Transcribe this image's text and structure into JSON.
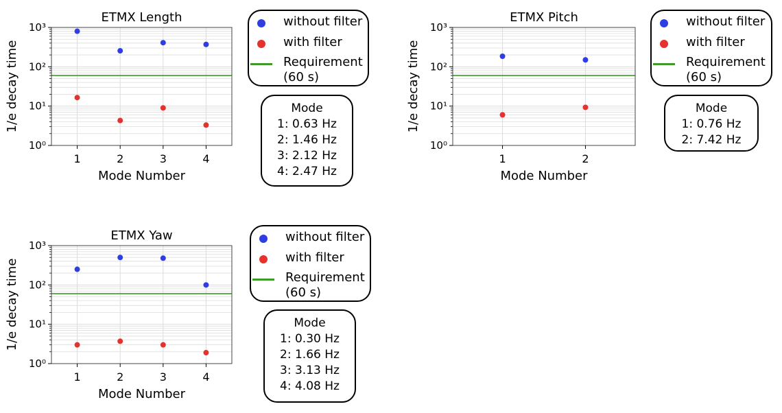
{
  "colors": {
    "without_filter": "#2f3ee3",
    "with_filter": "#e5322d",
    "requirement": "#3f9a2a",
    "grid": "#dcdcdc"
  },
  "chart_data": [
    {
      "type": "scatter",
      "title": "ETMX Length",
      "xlabel": "Mode Number",
      "ylabel": "1/e decay time",
      "yscale": "log",
      "ylim": [
        1,
        1000
      ],
      "xticks": [
        "1",
        "2",
        "3",
        "4"
      ],
      "yticks": [
        "10⁰",
        "10¹",
        "10²",
        "10³"
      ],
      "grid": true,
      "requirement": 60,
      "series": [
        {
          "name": "without filter",
          "x": [
            1,
            2,
            3,
            4
          ],
          "values": [
            800,
            255,
            410,
            370
          ]
        },
        {
          "name": "with filter",
          "x": [
            1,
            2,
            3,
            4
          ],
          "values": [
            16.5,
            4.3,
            9.0,
            3.3
          ]
        }
      ],
      "legend": {
        "items": [
          "without filter",
          "with filter",
          "Requirement",
          "(60 s)"
        ],
        "placement": "right"
      },
      "mode_box": {
        "title": "Mode",
        "lines": [
          "1: 0.63 Hz",
          "2: 1.46 Hz",
          "3: 2.12 Hz",
          "4: 2.47 Hz"
        ]
      }
    },
    {
      "type": "scatter",
      "title": "ETMX Pitch",
      "xlabel": "Mode Number",
      "ylabel": "1/e decay time",
      "yscale": "log",
      "ylim": [
        1,
        1000
      ],
      "xticks": [
        "1",
        "2"
      ],
      "yticks": [
        "10⁰",
        "10¹",
        "10²",
        "10³"
      ],
      "grid": true,
      "requirement": 60,
      "series": [
        {
          "name": "without filter",
          "x": [
            1,
            2
          ],
          "values": [
            185,
            150
          ]
        },
        {
          "name": "with filter",
          "x": [
            1,
            2
          ],
          "values": [
            6.0,
            9.3
          ]
        }
      ],
      "legend": {
        "items": [
          "without filter",
          "with filter",
          "Requirement",
          "(60 s)"
        ],
        "placement": "right"
      },
      "mode_box": {
        "title": "Mode",
        "lines": [
          "1: 0.76 Hz",
          "2: 7.42 Hz"
        ]
      }
    },
    {
      "type": "scatter",
      "title": "ETMX Yaw",
      "xlabel": "Mode Number",
      "ylabel": "1/e decay time",
      "yscale": "log",
      "ylim": [
        1,
        1000
      ],
      "xticks": [
        "1",
        "2",
        "3",
        "4"
      ],
      "yticks": [
        "10⁰",
        "10¹",
        "10²",
        "10³"
      ],
      "grid": true,
      "requirement": 60,
      "series": [
        {
          "name": "without filter",
          "x": [
            1,
            2,
            3,
            4
          ],
          "values": [
            250,
            500,
            480,
            100
          ]
        },
        {
          "name": "with filter",
          "x": [
            1,
            2,
            3,
            4
          ],
          "values": [
            3.0,
            3.7,
            3.0,
            1.9
          ]
        }
      ],
      "legend": {
        "items": [
          "without filter",
          "with filter",
          "Requirement",
          "(60 s)"
        ],
        "placement": "right"
      },
      "mode_box": {
        "title": "Mode",
        "lines": [
          "1: 0.30 Hz",
          "2: 1.66 Hz",
          "3: 3.13 Hz",
          "4: 4.08 Hz"
        ]
      }
    }
  ]
}
